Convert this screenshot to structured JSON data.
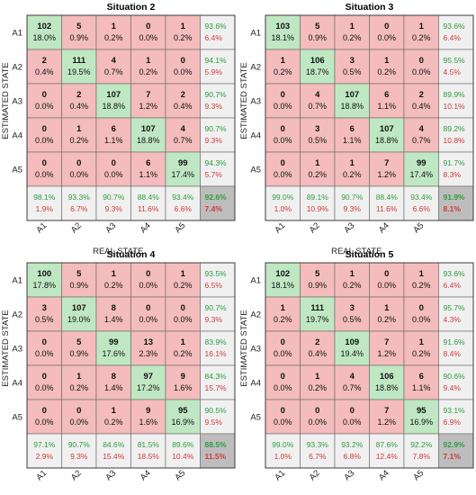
{
  "chart_data": [
    {
      "type": "heatmap",
      "title": "Situation 2",
      "xlabel": "REAL STATE",
      "ylabel": "ESTIMATED STATE",
      "classes": [
        "A1",
        "A2",
        "A3",
        "A4",
        "A5"
      ],
      "counts": [
        [
          102,
          5,
          1,
          0,
          1
        ],
        [
          2,
          111,
          4,
          1,
          0
        ],
        [
          0,
          2,
          107,
          7,
          2
        ],
        [
          0,
          1,
          6,
          107,
          4
        ],
        [
          0,
          0,
          0,
          6,
          99
        ]
      ],
      "cell_pct": [
        [
          "18.0%",
          "0.9%",
          "0.2%",
          "0.0%",
          "0.2%"
        ],
        [
          "0.4%",
          "19.5%",
          "0.7%",
          "0.2%",
          "0.0%"
        ],
        [
          "0.0%",
          "0.4%",
          "18.8%",
          "1.2%",
          "0.4%"
        ],
        [
          "0.0%",
          "0.2%",
          "1.1%",
          "18.8%",
          "0.7%"
        ],
        [
          "0.0%",
          "0.0%",
          "0.0%",
          "1.1%",
          "17.4%"
        ]
      ],
      "row_summary": [
        [
          "93.6%",
          "6.4%"
        ],
        [
          "94.1%",
          "5.9%"
        ],
        [
          "90.7%",
          "9.3%"
        ],
        [
          "90.7%",
          "9.3%"
        ],
        [
          "94.3%",
          "5.7%"
        ]
      ],
      "col_summary": [
        [
          "98.1%",
          "1.9%"
        ],
        [
          "93.3%",
          "6.7%"
        ],
        [
          "90.7%",
          "9.3%"
        ],
        [
          "88.4%",
          "11.6%"
        ],
        [
          "93.4%",
          "6.6%"
        ]
      ],
      "total": [
        "92.6%",
        "7.4%"
      ]
    },
    {
      "type": "heatmap",
      "title": "Situation 3",
      "xlabel": "REAL STATE",
      "ylabel": "ESTIMATED STATE",
      "classes": [
        "A1",
        "A2",
        "A3",
        "A4",
        "A5"
      ],
      "counts": [
        [
          103,
          5,
          1,
          0,
          1
        ],
        [
          1,
          106,
          3,
          1,
          0
        ],
        [
          0,
          4,
          107,
          6,
          2
        ],
        [
          0,
          3,
          6,
          107,
          4
        ],
        [
          0,
          1,
          1,
          7,
          99
        ]
      ],
      "cell_pct": [
        [
          "18.1%",
          "0.9%",
          "0.2%",
          "0.0%",
          "0.2%"
        ],
        [
          "0.2%",
          "18.7%",
          "0.5%",
          "0.2%",
          "0.0%"
        ],
        [
          "0.0%",
          "0.7%",
          "18.8%",
          "1.1%",
          "0.4%"
        ],
        [
          "0.0%",
          "0.5%",
          "1.1%",
          "18.8%",
          "0.7%"
        ],
        [
          "0.0%",
          "0.2%",
          "0.2%",
          "1.2%",
          "17.4%"
        ]
      ],
      "row_summary": [
        [
          "93.6%",
          "6.4%"
        ],
        [
          "95.5%",
          "4.5%"
        ],
        [
          "89.9%",
          "10.1%"
        ],
        [
          "89.2%",
          "10.8%"
        ],
        [
          "91.7%",
          "8.3%"
        ]
      ],
      "col_summary": [
        [
          "99.0%",
          "1.0%"
        ],
        [
          "89.1%",
          "10.9%"
        ],
        [
          "90.7%",
          "9.3%"
        ],
        [
          "88.4%",
          "11.6%"
        ],
        [
          "93.4%",
          "6.6%"
        ]
      ],
      "total": [
        "91.9%",
        "8.1%"
      ]
    },
    {
      "type": "heatmap",
      "title": "Situation 4",
      "xlabel": "REAL STATE",
      "ylabel": "ESTIMATED STATE",
      "classes": [
        "A1",
        "A2",
        "A3",
        "A4",
        "A5"
      ],
      "counts": [
        [
          100,
          5,
          1,
          0,
          1
        ],
        [
          3,
          107,
          8,
          0,
          0
        ],
        [
          0,
          5,
          99,
          13,
          1
        ],
        [
          0,
          1,
          8,
          97,
          9
        ],
        [
          0,
          0,
          1,
          9,
          95
        ]
      ],
      "cell_pct": [
        [
          "17.8%",
          "0.9%",
          "0.2%",
          "0.0%",
          "0.2%"
        ],
        [
          "0.5%",
          "19.0%",
          "1.4%",
          "0.0%",
          "0.0%"
        ],
        [
          "0.0%",
          "0.9%",
          "17.6%",
          "2.3%",
          "0.2%"
        ],
        [
          "0.0%",
          "0.2%",
          "1.4%",
          "17.2%",
          "1.6%"
        ],
        [
          "0.0%",
          "0.0%",
          "0.2%",
          "1.6%",
          "16.9%"
        ]
      ],
      "row_summary": [
        [
          "93.5%",
          "6.5%"
        ],
        [
          "90.7%",
          "9.3%"
        ],
        [
          "83.9%",
          "16.1%"
        ],
        [
          "84.3%",
          "15.7%"
        ],
        [
          "90.5%",
          "9.5%"
        ]
      ],
      "col_summary": [
        [
          "97.1%",
          "2.9%"
        ],
        [
          "90.7%",
          "9.3%"
        ],
        [
          "84.6%",
          "15.4%"
        ],
        [
          "81.5%",
          "18.5%"
        ],
        [
          "89.6%",
          "10.4%"
        ]
      ],
      "total": [
        "88.5%",
        "11.5%"
      ]
    },
    {
      "type": "heatmap",
      "title": "Situation 5",
      "xlabel": "REAL STATE",
      "ylabel": "ESTIMATED STATE",
      "classes": [
        "A1",
        "A2",
        "A3",
        "A4",
        "A5"
      ],
      "counts": [
        [
          102,
          5,
          1,
          0,
          1
        ],
        [
          1,
          111,
          3,
          1,
          0
        ],
        [
          0,
          2,
          109,
          7,
          1
        ],
        [
          0,
          1,
          4,
          106,
          6
        ],
        [
          0,
          0,
          0,
          7,
          95
        ]
      ],
      "cell_pct": [
        [
          "18.1%",
          "0.9%",
          "0.2%",
          "0.0%",
          "0.2%"
        ],
        [
          "0.2%",
          "19.7%",
          "0.5%",
          "0.2%",
          "0.0%"
        ],
        [
          "0.0%",
          "0.4%",
          "19.4%",
          "1.2%",
          "0.2%"
        ],
        [
          "0.0%",
          "0.2%",
          "0.7%",
          "18.8%",
          "1.1%"
        ],
        [
          "0.0%",
          "0.0%",
          "0.0%",
          "1.2%",
          "16.9%"
        ]
      ],
      "row_summary": [
        [
          "93.6%",
          "6.4%"
        ],
        [
          "95.7%",
          "4.3%"
        ],
        [
          "91.6%",
          "8.4%"
        ],
        [
          "90.6%",
          "9.4%"
        ],
        [
          "93.1%",
          "6.9%"
        ]
      ],
      "col_summary": [
        [
          "99.0%",
          "1.0%"
        ],
        [
          "93.3%",
          "6.7%"
        ],
        [
          "93.2%",
          "6.8%"
        ],
        [
          "87.6%",
          "12.4%"
        ],
        [
          "92.2%",
          "7.8%"
        ]
      ],
      "total": [
        "92.9%",
        "7.1%"
      ]
    }
  ],
  "colors": {
    "diag": "#bfe7c3",
    "offdiag": "#f4bcbc",
    "summary": "#f0f0f0",
    "total": "#bdbdbd",
    "good_text": "#2e9e3e",
    "bad_text": "#d23a3a"
  }
}
